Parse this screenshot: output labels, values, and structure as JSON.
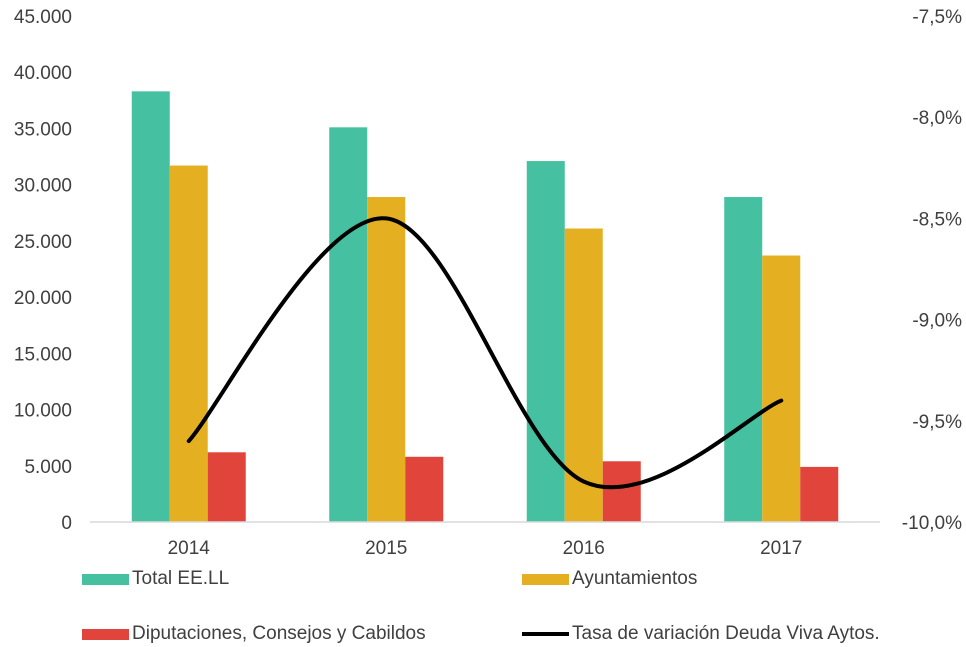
{
  "chart_data": {
    "type": "bar",
    "categories": [
      "2014",
      "2015",
      "2016",
      "2017"
    ],
    "series": [
      {
        "name": "Total EE.LL",
        "values": [
          38300,
          35100,
          32100,
          28900
        ],
        "color": "#45c1a1"
      },
      {
        "name": "Ayuntamientos",
        "values": [
          31700,
          28900,
          26100,
          23700
        ],
        "color": "#e4b021"
      },
      {
        "name": "Diputaciones, Consejos y Cabildos",
        "values": [
          6200,
          5800,
          5400,
          4900
        ],
        "color": "#e0443b"
      }
    ],
    "line_series": {
      "name": "Tasa de variación Deuda Viva Aytos.",
      "values": [
        -9.6,
        -8.5,
        -9.8,
        -9.4
      ],
      "color": "#000000"
    },
    "y_left": {
      "ylim": [
        0,
        45000
      ],
      "ticks": [
        "0",
        "5.000",
        "10.000",
        "15.000",
        "20.000",
        "25.000",
        "30.000",
        "35.000",
        "40.000",
        "45.000"
      ]
    },
    "y_right": {
      "ylim": [
        -10.0,
        -7.5
      ],
      "ticks": [
        "-10,0%",
        "-9,5%",
        "-9,0%",
        "-8,5%",
        "-8,0%",
        "-7,5%"
      ]
    },
    "grid": false,
    "legend_position": "bottom"
  }
}
